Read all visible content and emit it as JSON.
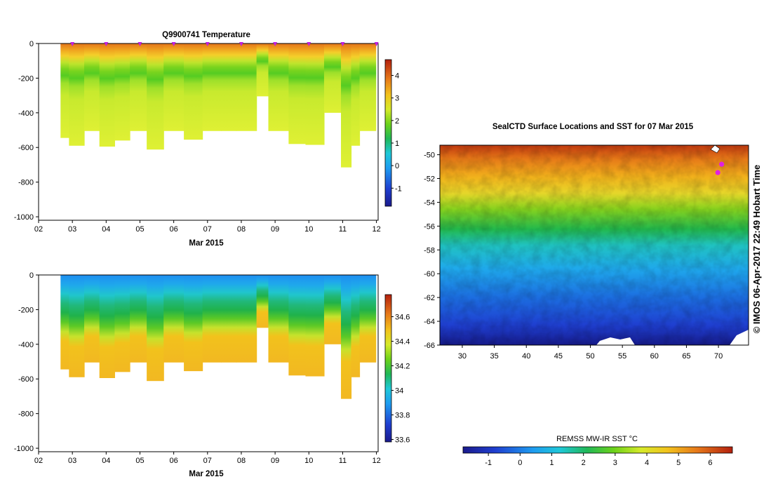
{
  "chart_data": [
    {
      "type": "heatmap",
      "title": "Q9900741  Temperature",
      "xlabel": "Mar 2015",
      "ylabel": "",
      "x_ticks": [
        "02",
        "03",
        "04",
        "05",
        "06",
        "07",
        "08",
        "09",
        "10",
        "11",
        "12"
      ],
      "x_range": [
        2,
        12.05
      ],
      "y_ticks": [
        0,
        -200,
        -400,
        -600,
        -800,
        -1000
      ],
      "ylim": [
        -1020,
        0
      ],
      "profile_markers": [
        3,
        4,
        5,
        6,
        7,
        8,
        9,
        10,
        11,
        12
      ],
      "colorbar": {
        "ticks": [
          4,
          3,
          2,
          1,
          0,
          -1
        ],
        "range": [
          -1.8,
          4.7
        ]
      },
      "profiles": [
        {
          "t": 2.65,
          "depth": 545
        },
        {
          "t": 2.9,
          "depth": 590
        },
        {
          "t": 3.35,
          "depth": 505
        },
        {
          "t": 3.8,
          "depth": 595
        },
        {
          "t": 4.25,
          "depth": 560
        },
        {
          "t": 4.7,
          "depth": 505
        },
        {
          "t": 5.2,
          "depth": 612
        },
        {
          "t": 5.7,
          "depth": 505
        },
        {
          "t": 6.3,
          "depth": 555
        },
        {
          "t": 6.85,
          "depth": 505
        },
        {
          "t": 7.4,
          "depth": 505
        },
        {
          "t": 7.85,
          "depth": 505
        },
        {
          "t": 8.45,
          "depth": 305
        },
        {
          "t": 8.8,
          "depth": 505
        },
        {
          "t": 9.4,
          "depth": 580
        },
        {
          "t": 9.9,
          "depth": 585
        },
        {
          "t": 10.45,
          "depth": 400
        },
        {
          "t": 10.95,
          "depth": 715
        },
        {
          "t": 11.25,
          "depth": 590
        },
        {
          "t": 11.5,
          "depth": 505
        }
      ]
    },
    {
      "type": "heatmap",
      "title": "",
      "xlabel": "Mar 2015",
      "ylabel": "",
      "x_ticks": [
        "02",
        "03",
        "04",
        "05",
        "06",
        "07",
        "08",
        "09",
        "10",
        "11",
        "12"
      ],
      "x_range": [
        2,
        12.05
      ],
      "y_ticks": [
        0,
        -200,
        -400,
        -600,
        -800,
        -1000
      ],
      "ylim": [
        -1020,
        0
      ],
      "colorbar": {
        "ticks": [
          "34.6",
          "34.4",
          "34.2",
          "34",
          "33.8",
          "33.6"
        ],
        "range": [
          33.58,
          34.78
        ]
      }
    },
    {
      "type": "heatmap",
      "title": "SealCTD Surface Locations and SST for 07 Mar 2015",
      "xlabel": "",
      "ylabel": "",
      "x_ticks": [
        "30",
        "35",
        "40",
        "45",
        "50",
        "55",
        "60",
        "65",
        "70"
      ],
      "xlim": [
        26.5,
        74.7
      ],
      "y_ticks": [
        "-50",
        "-52",
        "-54",
        "-56",
        "-58",
        "-60",
        "-62",
        "-64",
        "-66"
      ],
      "ylim": [
        -66,
        -49.2
      ],
      "seal_locations": [
        {
          "lon": 70.5,
          "lat": -50.8
        },
        {
          "lon": 69.9,
          "lat": -51.5
        }
      ],
      "colorbar": {
        "label": "REMSS MW-IR SST °C",
        "ticks": [
          "-1",
          "0",
          "1",
          "2",
          "3",
          "4",
          "5",
          "6"
        ],
        "range": [
          -1.8,
          6.7
        ]
      },
      "side_label": "© IMOS 06-Apr-2017 22:49 Hobart Time"
    }
  ]
}
